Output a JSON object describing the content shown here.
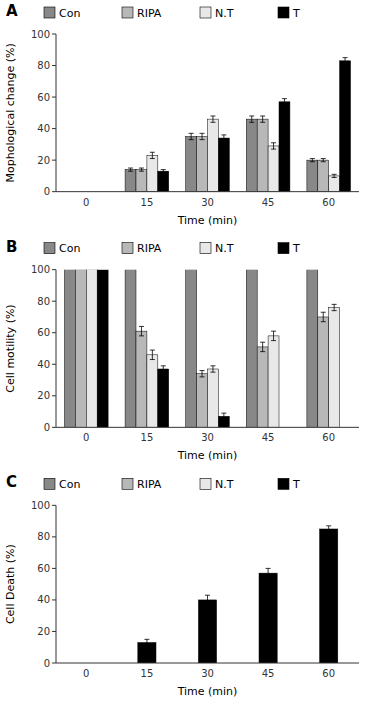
{
  "chart_data": [
    {
      "type": "bar",
      "title": "A",
      "xlabel": "Time (min)",
      "ylabel": "Mophological change (%)",
      "categories": [
        0,
        15,
        30,
        45,
        60
      ],
      "series": [
        {
          "name": "Con",
          "color": "#888888",
          "values": [
            0,
            14,
            35,
            46,
            20
          ],
          "errors": [
            0,
            1,
            2,
            2,
            1
          ]
        },
        {
          "name": "RIPA",
          "color": "#b8b8b8",
          "values": [
            0,
            14,
            35,
            46,
            20
          ],
          "errors": [
            0,
            1,
            2,
            2,
            1
          ]
        },
        {
          "name": "N.T",
          "color": "#e8e8e8",
          "values": [
            0,
            23,
            46,
            29,
            10
          ],
          "errors": [
            0,
            2,
            2,
            2,
            1
          ]
        },
        {
          "name": "T",
          "color": "#000000",
          "values": [
            0,
            13,
            34,
            57,
            83
          ],
          "errors": [
            0,
            1,
            2,
            2,
            2
          ]
        }
      ],
      "ylim": [
        0,
        100
      ],
      "yticks": [
        0,
        20,
        40,
        60,
        80,
        100
      ],
      "grid": false,
      "legend": "top"
    },
    {
      "type": "bar",
      "title": "B",
      "xlabel": "Time (min)",
      "ylabel": "Cell motility (%)",
      "categories": [
        0,
        15,
        30,
        45,
        60
      ],
      "series": [
        {
          "name": "Con",
          "color": "#888888",
          "values": [
            100,
            100,
            100,
            100,
            100
          ],
          "errors": [
            0,
            0,
            0,
            0,
            0
          ]
        },
        {
          "name": "RIPA",
          "color": "#b8b8b8",
          "values": [
            100,
            61,
            34,
            51,
            70
          ],
          "errors": [
            0,
            3,
            2,
            3,
            3
          ]
        },
        {
          "name": "N.T",
          "color": "#e8e8e8",
          "values": [
            100,
            46,
            37,
            58,
            76
          ],
          "errors": [
            0,
            3,
            2,
            3,
            2
          ]
        },
        {
          "name": "T",
          "color": "#000000",
          "values": [
            100,
            37,
            7,
            0,
            0
          ],
          "errors": [
            0,
            2,
            2,
            0,
            0
          ]
        }
      ],
      "ylim": [
        0,
        100
      ],
      "yticks": [
        0,
        20,
        40,
        60,
        80,
        100
      ],
      "grid": false,
      "legend": "top"
    },
    {
      "type": "bar",
      "title": "C",
      "xlabel": "Time (min)",
      "ylabel": "Cell Death  (%)",
      "categories": [
        0,
        15,
        30,
        45,
        60
      ],
      "series": [
        {
          "name": "Con",
          "color": "#888888",
          "values": [
            null,
            null,
            null,
            null,
            null
          ]
        },
        {
          "name": "RIPA",
          "color": "#b8b8b8",
          "values": [
            null,
            null,
            null,
            null,
            null
          ]
        },
        {
          "name": "N.T",
          "color": "#e8e8e8",
          "values": [
            null,
            null,
            null,
            null,
            null
          ]
        },
        {
          "name": "T",
          "color": "#000000",
          "values": [
            0,
            13,
            40,
            57,
            85
          ],
          "errors": [
            0,
            2,
            3,
            3,
            2
          ]
        }
      ],
      "ylim": [
        0,
        100
      ],
      "yticks": [
        0,
        20,
        40,
        60,
        80,
        100
      ],
      "grid": false,
      "legend": "top"
    }
  ]
}
